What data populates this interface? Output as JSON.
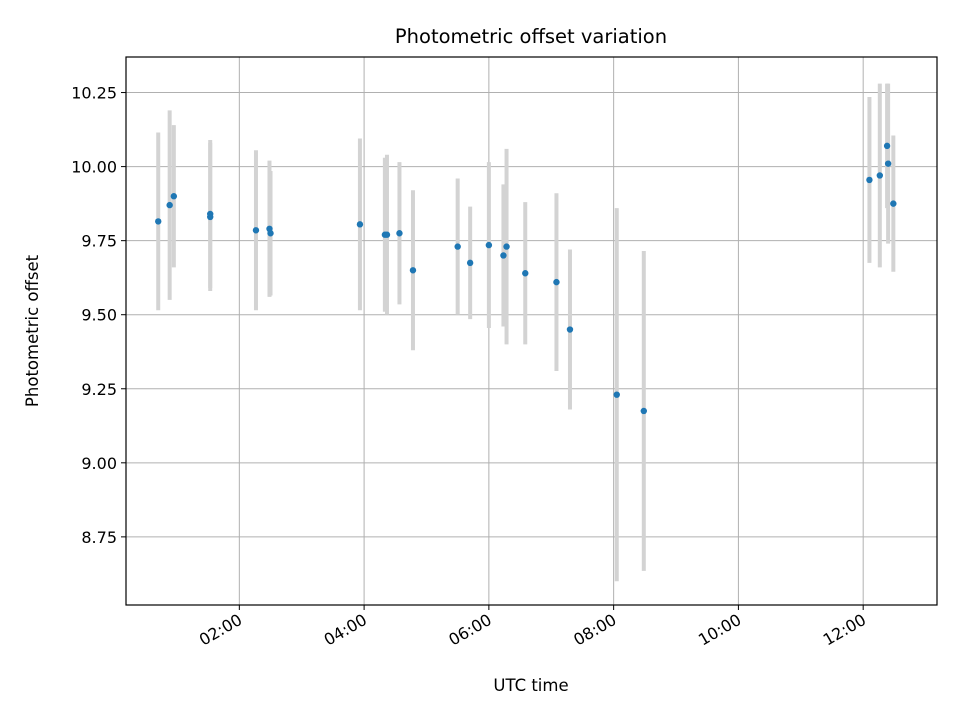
{
  "chart_data": {
    "type": "scatter",
    "title": "Photometric offset variation",
    "xlabel": "UTC time",
    "ylabel": "Photometric offset",
    "x_axis_type": "time",
    "xlim": [
      "00:11",
      "13:11"
    ],
    "ylim": [
      8.52,
      10.37
    ],
    "grid": true,
    "legend": "none",
    "colors": {
      "point": "#1f77b4",
      "errorbar": "#d3d3d3",
      "grid": "#b0b0b0"
    },
    "x_ticks": [
      "02:00",
      "04:00",
      "06:00",
      "08:00",
      "10:00",
      "12:00"
    ],
    "y_ticks": [
      "8.75",
      "9.00",
      "9.25",
      "9.50",
      "9.75",
      "10.00",
      "10.25"
    ],
    "series": [
      {
        "points": [
          {
            "x": "00:42",
            "y": 9.815,
            "err": 0.3
          },
          {
            "x": "00:53",
            "y": 9.87,
            "err": 0.32
          },
          {
            "x": "00:57",
            "y": 9.9,
            "err": 0.24
          },
          {
            "x": "01:32",
            "y": 9.84,
            "err": 0.25
          },
          {
            "x": "01:32",
            "y": 9.83,
            "err": 0.25
          },
          {
            "x": "02:16",
            "y": 9.785,
            "err": 0.27
          },
          {
            "x": "02:29",
            "y": 9.79,
            "err": 0.23
          },
          {
            "x": "02:30",
            "y": 9.775,
            "err": 0.21
          },
          {
            "x": "03:56",
            "y": 9.805,
            "err": 0.29
          },
          {
            "x": "04:20",
            "y": 9.77,
            "err": 0.26
          },
          {
            "x": "04:22",
            "y": 9.77,
            "err": 0.27
          },
          {
            "x": "04:34",
            "y": 9.775,
            "err": 0.24
          },
          {
            "x": "04:47",
            "y": 9.65,
            "err": 0.27
          },
          {
            "x": "05:30",
            "y": 9.73,
            "err": 0.23
          },
          {
            "x": "05:42",
            "y": 9.675,
            "err": 0.19
          },
          {
            "x": "06:00",
            "y": 9.735,
            "err": 0.28
          },
          {
            "x": "06:14",
            "y": 9.7,
            "err": 0.24
          },
          {
            "x": "06:17",
            "y": 9.73,
            "err": 0.33
          },
          {
            "x": "06:35",
            "y": 9.64,
            "err": 0.24
          },
          {
            "x": "07:05",
            "y": 9.61,
            "err": 0.3
          },
          {
            "x": "07:18",
            "y": 9.45,
            "err": 0.27
          },
          {
            "x": "08:03",
            "y": 9.23,
            "err": 0.63
          },
          {
            "x": "08:29",
            "y": 9.175,
            "err": 0.54
          },
          {
            "x": "12:06",
            "y": 9.955,
            "err": 0.28
          },
          {
            "x": "12:16",
            "y": 9.97,
            "err": 0.31
          },
          {
            "x": "12:23",
            "y": 10.07,
            "err": 0.21
          },
          {
            "x": "12:24",
            "y": 10.01,
            "err": 0.27
          },
          {
            "x": "12:29",
            "y": 9.875,
            "err": 0.23
          }
        ]
      }
    ]
  }
}
